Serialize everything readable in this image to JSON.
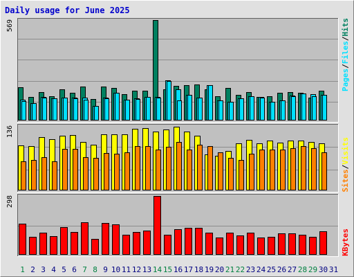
{
  "title": "Daily usage for June 2025",
  "colors": {
    "hits": "#008060",
    "files": "#00e0ff",
    "sites": "#ff8000",
    "visits": "#ffff00",
    "kbytes": "#ff0000",
    "panel_bg": "#c0c0c0",
    "frame_bg": "#e0e0e0",
    "weekend_day_label": "#008040",
    "weekday_label": "#000080",
    "title_color": "#0000cc"
  },
  "chart_data": [
    {
      "type": "bar",
      "categories": [
        "1",
        "2",
        "3",
        "4",
        "5",
        "6",
        "7",
        "8",
        "9",
        "10",
        "11",
        "12",
        "13",
        "14",
        "15",
        "16",
        "17",
        "18",
        "19",
        "20",
        "21",
        "22",
        "23",
        "24",
        "25",
        "26",
        "27",
        "28",
        "29",
        "30",
        "31"
      ],
      "weekend_days": [
        "1",
        "7",
        "8",
        "14",
        "15",
        "21",
        "22",
        "28",
        "29"
      ],
      "series": [
        {
          "name": "Hits",
          "values": [
            189,
            134,
            162,
            138,
            176,
            157,
            194,
            121,
            192,
            183,
            149,
            168,
            170,
            569,
            175,
            196,
            200,
            203,
            178,
            137,
            183,
            145,
            162,
            134,
            137,
            158,
            162,
            158,
            131,
            167,
            0
          ]
        },
        {
          "name": "Files",
          "values": [
            117,
            99,
            132,
            124,
            128,
            131,
            129,
            82,
            128,
            157,
            117,
            124,
            135,
            132,
            227,
            175,
            144,
            129,
            200,
            113,
            105,
            124,
            137,
            134,
            107,
            114,
            141,
            152,
            148,
            144,
            0
          ]
        },
        {
          "name": "Pages",
          "values": [
            111,
            98,
            131,
            124,
            128,
            126,
            118,
            82,
            127,
            156,
            116,
            123,
            134,
            131,
            222,
            112,
            144,
            129,
            199,
            113,
            104,
            124,
            136,
            128,
            106,
            114,
            139,
            152,
            137,
            144,
            0
          ]
        }
      ],
      "ylim": [
        0,
        569
      ],
      "tick_max_label": "569",
      "right_label_parts": [
        "Pages",
        "Files",
        "Hits"
      ]
    },
    {
      "type": "bar",
      "categories": [
        "1",
        "2",
        "3",
        "4",
        "5",
        "6",
        "7",
        "8",
        "9",
        "10",
        "11",
        "12",
        "13",
        "14",
        "15",
        "16",
        "17",
        "18",
        "19",
        "20",
        "21",
        "22",
        "23",
        "24",
        "25",
        "26",
        "27",
        "28",
        "29",
        "30",
        "31"
      ],
      "series": [
        {
          "name": "Visits",
          "values": [
            95,
            93,
            112,
            108,
            116,
            117,
            102,
            97,
            118,
            119,
            119,
            130,
            132,
            124,
            128,
            134,
            124,
            116,
            76,
            73,
            83,
            100,
            107,
            99,
            105,
            101,
            106,
            105,
            103,
            100,
            0
          ]
        },
        {
          "name": "Sites",
          "values": [
            62,
            65,
            70,
            61,
            88,
            88,
            70,
            68,
            79,
            78,
            80,
            93,
            93,
            87,
            92,
            102,
            87,
            96,
            94,
            80,
            68,
            65,
            78,
            86,
            87,
            86,
            89,
            94,
            89,
            81,
            0
          ]
        }
      ],
      "ylim": [
        0,
        136
      ],
      "tick_max_label": "136",
      "right_label_parts": [
        "Sites",
        "Visits"
      ]
    },
    {
      "type": "bar",
      "categories": [
        "1",
        "2",
        "3",
        "4",
        "5",
        "6",
        "7",
        "8",
        "9",
        "10",
        "11",
        "12",
        "13",
        "14",
        "15",
        "16",
        "17",
        "18",
        "19",
        "20",
        "21",
        "22",
        "23",
        "24",
        "25",
        "26",
        "27",
        "28",
        "29",
        "30",
        "31"
      ],
      "series": [
        {
          "name": "KBytes",
          "values": [
            158,
            91,
            113,
            96,
            141,
            114,
            165,
            82,
            161,
            155,
            102,
            114,
            122,
            298,
            103,
            131,
            138,
            138,
            112,
            88,
            112,
            97,
            112,
            87,
            90,
            109,
            110,
            102,
            91,
            118,
            0
          ]
        }
      ],
      "ylim": [
        0,
        298
      ],
      "tick_max_label": "298",
      "right_label_parts": [
        "KBytes"
      ]
    }
  ]
}
